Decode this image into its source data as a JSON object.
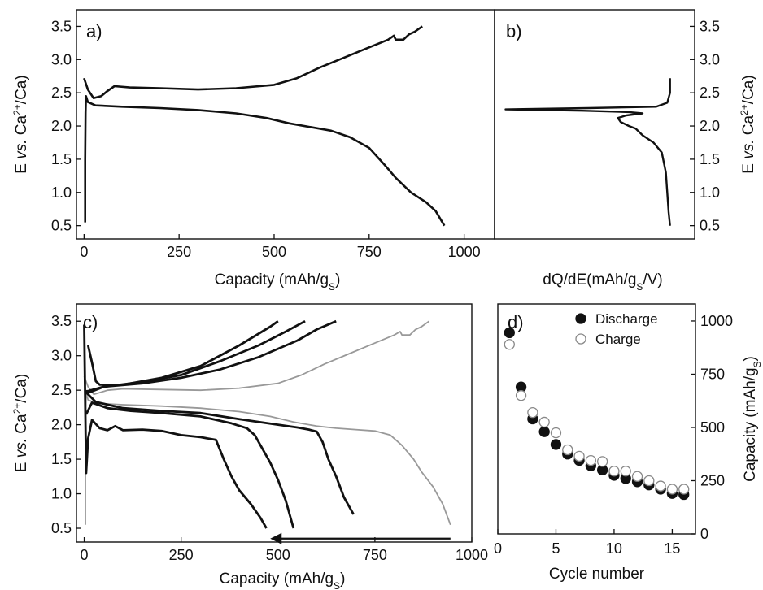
{
  "chart_data": [
    {
      "id": "a",
      "type": "line",
      "panel_label": "a)",
      "xlabel": "Capacity (mAh/g",
      "xlabel_sub": "S",
      "xlabel_end": ")",
      "ylabel_parts": [
        "E ",
        "vs.",
        " Ca",
        "2+",
        "/Ca)"
      ],
      "xlim": [
        -20,
        1080
      ],
      "ylim": [
        0.3,
        3.75
      ],
      "xticks": [
        0,
        250,
        500,
        750,
        1000
      ],
      "yticks": [
        0.5,
        1.0,
        1.5,
        2.0,
        2.5,
        3.0,
        3.5
      ],
      "series": [
        {
          "color": "#111111",
          "points": [
            [
              3,
              0.55
            ],
            [
              3,
              1.5
            ],
            [
              4,
              2.2
            ],
            [
              5,
              2.45
            ],
            [
              10,
              2.36
            ],
            [
              30,
              2.31
            ],
            [
              100,
              2.29
            ],
            [
              200,
              2.27
            ],
            [
              300,
              2.24
            ],
            [
              400,
              2.19
            ],
            [
              480,
              2.12
            ],
            [
              540,
              2.04
            ],
            [
              600,
              1.98
            ],
            [
              650,
              1.93
            ],
            [
              700,
              1.83
            ],
            [
              750,
              1.67
            ],
            [
              790,
              1.42
            ],
            [
              820,
              1.22
            ],
            [
              860,
              1.0
            ],
            [
              900,
              0.85
            ],
            [
              925,
              0.72
            ],
            [
              948,
              0.5
            ]
          ]
        },
        {
          "color": "#111111",
          "points": [
            [
              0,
              2.72
            ],
            [
              10,
              2.55
            ],
            [
              25,
              2.42
            ],
            [
              45,
              2.45
            ],
            [
              60,
              2.52
            ],
            [
              80,
              2.6
            ],
            [
              120,
              2.58
            ],
            [
              200,
              2.57
            ],
            [
              300,
              2.55
            ],
            [
              400,
              2.57
            ],
            [
              500,
              2.62
            ],
            [
              560,
              2.72
            ],
            [
              620,
              2.88
            ],
            [
              680,
              3.02
            ],
            [
              740,
              3.16
            ],
            [
              800,
              3.3
            ],
            [
              815,
              3.36
            ],
            [
              820,
              3.3
            ],
            [
              840,
              3.3
            ],
            [
              855,
              3.38
            ],
            [
              870,
              3.42
            ],
            [
              890,
              3.5
            ]
          ]
        }
      ]
    },
    {
      "id": "b",
      "type": "line",
      "panel_label": "b)",
      "xlabel": "dQ/dE(mAh/g",
      "xlabel_sub": "S",
      "xlabel_end": "/V)",
      "ylabel_parts": [
        "E ",
        "vs.",
        " Ca",
        "2+",
        "/Ca)"
      ],
      "ylim": [
        0.3,
        3.75
      ],
      "yticks": [
        0.5,
        1.0,
        1.5,
        2.0,
        2.5,
        3.0,
        3.5
      ],
      "series": [
        {
          "color": "#111111",
          "points": [
            [
              0,
              0.5
            ],
            [
              -0.05,
              0.7
            ],
            [
              -0.1,
              1.0
            ],
            [
              -0.15,
              1.3
            ],
            [
              -0.3,
              1.6
            ],
            [
              -0.6,
              1.75
            ],
            [
              -1.0,
              1.86
            ],
            [
              -1.25,
              1.96
            ],
            [
              -1.5,
              2.0
            ],
            [
              -1.8,
              2.06
            ],
            [
              -1.9,
              2.12
            ],
            [
              -1.6,
              2.16
            ],
            [
              -1.0,
              2.19
            ],
            [
              -1.5,
              2.21
            ],
            [
              -3.2,
              2.23
            ],
            [
              -6.0,
              2.25
            ],
            [
              -3.0,
              2.27
            ],
            [
              -0.5,
              2.29
            ],
            [
              -0.1,
              2.35
            ],
            [
              0,
              2.5
            ],
            [
              0,
              2.72
            ]
          ]
        }
      ]
    },
    {
      "id": "c",
      "type": "line",
      "panel_label": "c)",
      "xlabel": "Capacity (mAh/g",
      "xlabel_sub": "S",
      "xlabel_end": ")",
      "ylabel_parts": [
        "E ",
        "vs.",
        " Ca",
        "2+",
        "/Ca)"
      ],
      "xlim": [
        -20,
        1000
      ],
      "ylim": [
        0.3,
        3.75
      ],
      "xticks": [
        0,
        250,
        500,
        750,
        1000
      ],
      "yticks": [
        0.5,
        1.0,
        1.5,
        2.0,
        2.5,
        3.0,
        3.5
      ],
      "arrow": {
        "from": [
          945,
          0.35
        ],
        "to": [
          480,
          0.35
        ]
      },
      "series": [
        {
          "color": "#999999",
          "points": [
            [
              3,
              0.55
            ],
            [
              3,
              1.5
            ],
            [
              4,
              2.2
            ],
            [
              5,
              2.45
            ],
            [
              10,
              2.36
            ],
            [
              30,
              2.31
            ],
            [
              100,
              2.29
            ],
            [
              200,
              2.27
            ],
            [
              300,
              2.24
            ],
            [
              400,
              2.19
            ],
            [
              480,
              2.12
            ],
            [
              540,
              2.04
            ],
            [
              600,
              1.98
            ],
            [
              650,
              1.95
            ],
            [
              700,
              1.93
            ],
            [
              750,
              1.91
            ],
            [
              790,
              1.85
            ],
            [
              820,
              1.7
            ],
            [
              850,
              1.5
            ],
            [
              870,
              1.32
            ],
            [
              900,
              1.1
            ],
            [
              925,
              0.85
            ],
            [
              945,
              0.55
            ]
          ]
        },
        {
          "color": "#999999",
          "points": [
            [
              0,
              2.7
            ],
            [
              10,
              2.55
            ],
            [
              25,
              2.44
            ],
            [
              60,
              2.5
            ],
            [
              100,
              2.52
            ],
            [
              200,
              2.51
            ],
            [
              300,
              2.5
            ],
            [
              400,
              2.53
            ],
            [
              500,
              2.6
            ],
            [
              560,
              2.72
            ],
            [
              620,
              2.88
            ],
            [
              680,
              3.02
            ],
            [
              740,
              3.16
            ],
            [
              800,
              3.3
            ],
            [
              815,
              3.35
            ],
            [
              820,
              3.3
            ],
            [
              840,
              3.3
            ],
            [
              855,
              3.38
            ],
            [
              870,
              3.42
            ],
            [
              890,
              3.5
            ]
          ]
        },
        {
          "color": "#111111",
          "points": [
            [
              5,
              2.5
            ],
            [
              10,
              2.44
            ],
            [
              30,
              2.33
            ],
            [
              100,
              2.24
            ],
            [
              200,
              2.2
            ],
            [
              300,
              2.17
            ],
            [
              400,
              2.08
            ],
            [
              500,
              2.0
            ],
            [
              550,
              1.96
            ],
            [
              580,
              1.93
            ],
            [
              600,
              1.9
            ],
            [
              615,
              1.75
            ],
            [
              630,
              1.5
            ],
            [
              650,
              1.25
            ],
            [
              670,
              0.95
            ],
            [
              695,
              0.7
            ]
          ]
        },
        {
          "color": "#111111",
          "points": [
            [
              5,
              2.48
            ],
            [
              50,
              2.55
            ],
            [
              150,
              2.6
            ],
            [
              250,
              2.68
            ],
            [
              350,
              2.8
            ],
            [
              450,
              2.98
            ],
            [
              550,
              3.22
            ],
            [
              600,
              3.38
            ],
            [
              650,
              3.5
            ]
          ]
        },
        {
          "color": "#111111",
          "points": [
            [
              5,
              2.15
            ],
            [
              20,
              2.32
            ],
            [
              60,
              2.24
            ],
            [
              120,
              2.2
            ],
            [
              200,
              2.17
            ],
            [
              300,
              2.12
            ],
            [
              380,
              2.02
            ],
            [
              420,
              1.95
            ],
            [
              440,
              1.85
            ],
            [
              460,
              1.65
            ],
            [
              480,
              1.45
            ],
            [
              500,
              1.2
            ],
            [
              520,
              0.9
            ],
            [
              540,
              0.5
            ]
          ]
        },
        {
          "color": "#111111",
          "points": [
            [
              5,
              2.45
            ],
            [
              50,
              2.55
            ],
            [
              150,
              2.62
            ],
            [
              250,
              2.72
            ],
            [
              350,
              2.92
            ],
            [
              450,
              3.15
            ],
            [
              520,
              3.35
            ],
            [
              570,
              3.5
            ]
          ]
        },
        {
          "color": "#111111",
          "points": [
            [
              0,
              3.45
            ],
            [
              5,
              1.3
            ],
            [
              10,
              1.8
            ],
            [
              20,
              2.07
            ],
            [
              40,
              1.95
            ],
            [
              60,
              1.92
            ],
            [
              80,
              1.98
            ],
            [
              100,
              1.92
            ],
            [
              150,
              1.93
            ],
            [
              200,
              1.91
            ],
            [
              250,
              1.85
            ],
            [
              300,
              1.82
            ],
            [
              340,
              1.78
            ],
            [
              360,
              1.5
            ],
            [
              380,
              1.25
            ],
            [
              400,
              1.05
            ],
            [
              430,
              0.85
            ],
            [
              455,
              0.65
            ],
            [
              470,
              0.5
            ]
          ]
        },
        {
          "color": "#111111",
          "points": [
            [
              10,
              3.15
            ],
            [
              20,
              2.9
            ],
            [
              30,
              2.63
            ],
            [
              40,
              2.58
            ],
            [
              100,
              2.58
            ],
            [
              200,
              2.68
            ],
            [
              300,
              2.85
            ],
            [
              400,
              3.15
            ],
            [
              480,
              3.42
            ],
            [
              500,
              3.5
            ]
          ]
        }
      ]
    },
    {
      "id": "d",
      "type": "scatter",
      "panel_label": "d)",
      "xlabel": "Cycle number",
      "ylabel": "Capacity (mAh/g",
      "ylabel_sub": "S",
      "ylabel_end": ")",
      "xlim": [
        0,
        17
      ],
      "ylim": [
        0,
        1080
      ],
      "xticks": [
        0,
        5,
        10,
        15
      ],
      "yticks": [
        0,
        250,
        500,
        750,
        1000
      ],
      "legend_position": "top-right",
      "series": [
        {
          "name": "Discharge",
          "marker": "filled",
          "x": [
            1,
            2,
            3,
            4,
            5,
            6,
            7,
            8,
            9,
            10,
            11,
            12,
            13,
            14,
            15,
            16
          ],
          "y": [
            945,
            690,
            540,
            480,
            420,
            375,
            345,
            320,
            300,
            275,
            260,
            245,
            230,
            210,
            190,
            185
          ]
        },
        {
          "name": "Charge",
          "marker": "open",
          "x": [
            1,
            2,
            3,
            4,
            5,
            6,
            7,
            8,
            9,
            10,
            11,
            12,
            13,
            14,
            15,
            16
          ],
          "y": [
            890,
            650,
            570,
            525,
            475,
            395,
            365,
            345,
            340,
            295,
            295,
            270,
            250,
            225,
            210,
            210
          ]
        }
      ]
    }
  ]
}
